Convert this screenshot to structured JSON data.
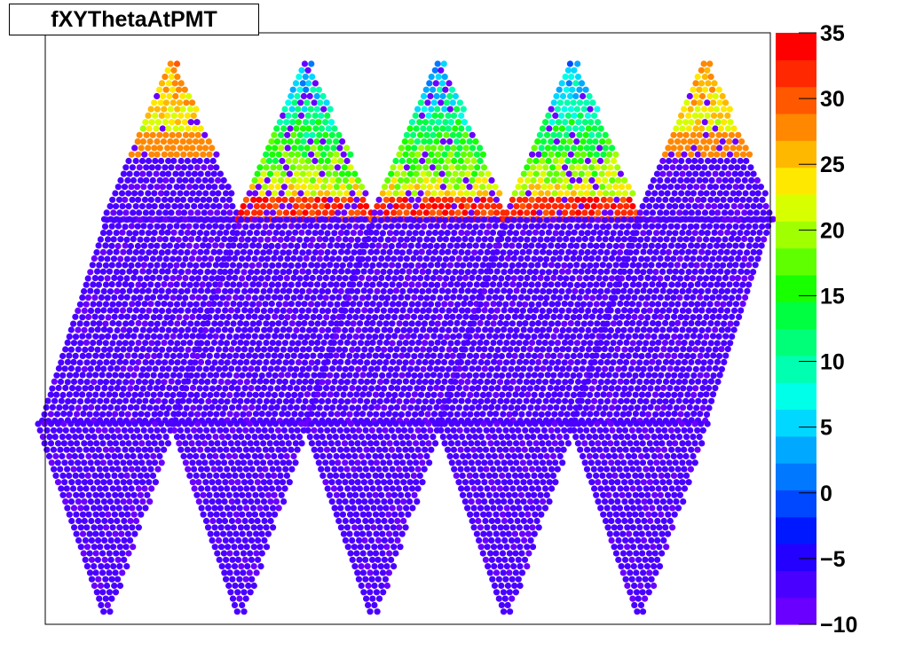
{
  "chart_data": {
    "type": "scatter",
    "title": "fXYThetaAtPMT",
    "xlabel": "",
    "ylabel": "",
    "colorbar": {
      "min": -10,
      "max": 35,
      "ticks": [
        -10,
        -5,
        0,
        5,
        10,
        15,
        20,
        25,
        30,
        35
      ],
      "tick_labels": [
        "−10",
        "−5",
        "0",
        "5",
        "10",
        "15",
        "20",
        "25",
        "30",
        "35"
      ],
      "palette": [
        "#6a00ff",
        "#4a00ff",
        "#2400ff",
        "#0018ff",
        "#0048ff",
        "#0078ff",
        "#00a8ff",
        "#00d8ff",
        "#00ffe8",
        "#00ffb0",
        "#00ff78",
        "#00ff40",
        "#18ff00",
        "#60ff00",
        "#a0ff00",
        "#d8ff00",
        "#ffe800",
        "#ffb800",
        "#ff8800",
        "#ff5800",
        "#ff2800",
        "#ff0000"
      ]
    },
    "description_of_structure": {
      "columns": 5,
      "rows": 4,
      "baseline_value": -8,
      "top_row_values_range": [
        0,
        32
      ]
    },
    "grid": false,
    "legend": "none"
  }
}
